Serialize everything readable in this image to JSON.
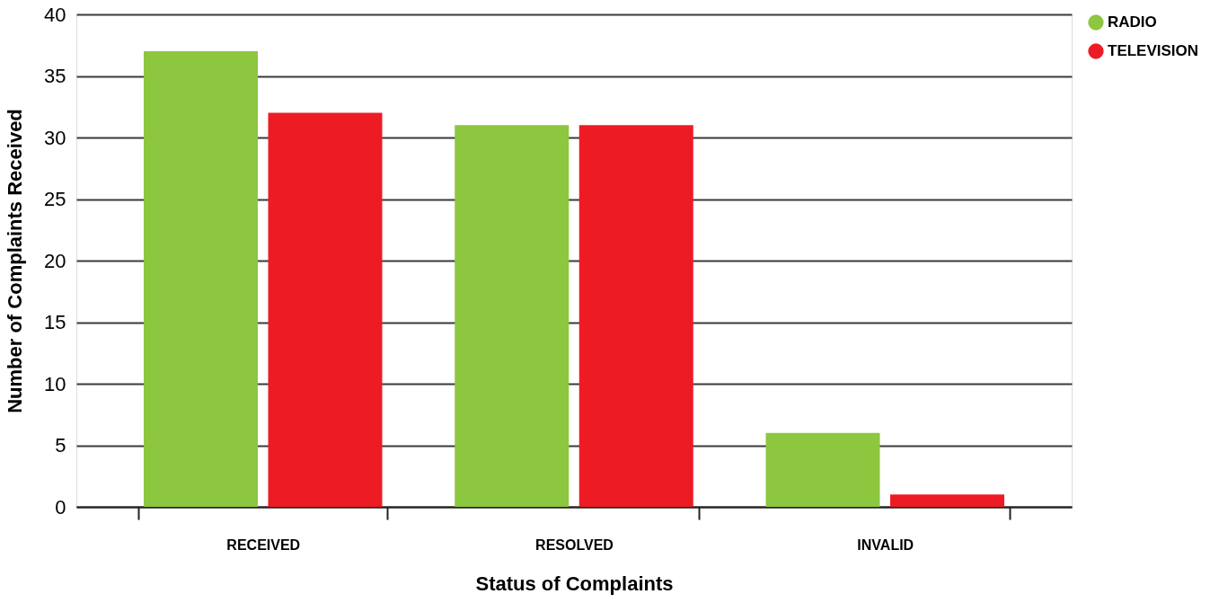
{
  "chart_data": {
    "type": "bar",
    "xlabel": "Status of Complaints",
    "ylabel": "Number of Complaints Received",
    "categories": [
      "RECEIVED",
      "RESOLVED",
      "INVALID"
    ],
    "series": [
      {
        "name": "RADIO",
        "color": "#8dc63f",
        "values": [
          37,
          31,
          6
        ]
      },
      {
        "name": "TELEVISION",
        "color": "#ed1c24",
        "values": [
          32,
          31,
          1
        ]
      }
    ],
    "ylim": [
      0,
      40
    ],
    "yticks": [
      0,
      5,
      10,
      15,
      20,
      25,
      30,
      35,
      40
    ],
    "grid": "y",
    "legend": "right"
  }
}
